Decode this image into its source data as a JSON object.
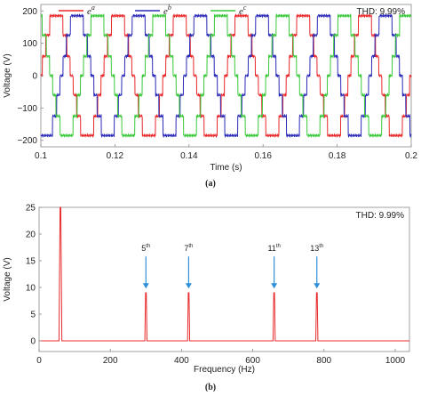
{
  "chart_data": [
    {
      "type": "line",
      "caption": "(a)",
      "xlabel": "Time (s)",
      "ylabel": "Voltage (V)",
      "xlim": [
        0.1,
        0.2
      ],
      "ylim": [
        -220,
        220
      ],
      "xticks": [
        0.1,
        0.12,
        0.14,
        0.16,
        0.18,
        0.2
      ],
      "yticks": [
        -200,
        -100,
        0,
        100,
        200
      ],
      "xtick_labels": [
        "0.1",
        "0.12",
        "0.14",
        "0.16",
        "0.18",
        "0.2"
      ],
      "ytick_labels": [
        "−200",
        "−100",
        "0",
        "100",
        "200"
      ],
      "annotation": "THD: 9.99%",
      "legend_position": "top",
      "frequency_hz": 60,
      "grid": false,
      "waveform_levels_v": [
        0,
        60,
        125,
        185
      ],
      "series": [
        {
          "legend_base": "e",
          "legend_sup": "a",
          "color": "#e8282b",
          "phase_deg": 0
        },
        {
          "legend_base": "e",
          "legend_sup": "b",
          "color": "#2a2ab8",
          "phase_deg": -120
        },
        {
          "legend_base": "e",
          "legend_sup": "c",
          "color": "#39c839",
          "phase_deg": 120
        }
      ]
    },
    {
      "type": "line",
      "caption": "(b)",
      "xlabel": "Frequency (Hz)",
      "ylabel": "Voltage (V)",
      "xlim": [
        0,
        1040
      ],
      "ylim": [
        -2,
        25
      ],
      "xticks": [
        0,
        200,
        400,
        600,
        800,
        1000
      ],
      "yticks": [
        0,
        5,
        10,
        15,
        20,
        25
      ],
      "xtick_labels": [
        "0",
        "200",
        "400",
        "600",
        "800",
        "1000"
      ],
      "ytick_labels": [
        "0",
        "5",
        "10",
        "15",
        "20",
        "25"
      ],
      "annotation": "THD: 9.99%",
      "grid": false,
      "color": "#e8282b",
      "arrow_color": "#2f8fd8",
      "spectrum": [
        {
          "frequency": 60,
          "amplitude": 25,
          "clipped": true
        },
        {
          "frequency": 300,
          "amplitude": 9.0,
          "order": "5",
          "suffix": "th"
        },
        {
          "frequency": 420,
          "amplitude": 9.0,
          "order": "7",
          "suffix": "th"
        },
        {
          "frequency": 660,
          "amplitude": 9.0,
          "order": "11",
          "suffix": "th"
        },
        {
          "frequency": 780,
          "amplitude": 9.0,
          "order": "13",
          "suffix": "th"
        }
      ]
    }
  ]
}
